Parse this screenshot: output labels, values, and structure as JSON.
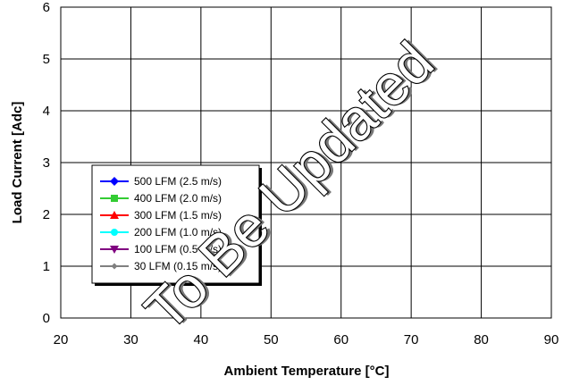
{
  "chart_data": {
    "type": "line",
    "title": "",
    "xlabel": "Ambient Temperature [°C]",
    "ylabel": "Load Current  [Adc]",
    "xlim": [
      20,
      90
    ],
    "ylim": [
      0,
      6
    ],
    "x_ticks": [
      "20",
      "30",
      "40",
      "50",
      "60",
      "70",
      "80",
      "90"
    ],
    "y_ticks": [
      "0",
      "1",
      "2",
      "3",
      "4",
      "5",
      "6"
    ],
    "grid": true,
    "legend_position": "lower-left",
    "series": [
      {
        "name": "500 LFM (2.5 m/s)",
        "color": "#0000ff",
        "marker": "diamond",
        "values": []
      },
      {
        "name": "400 LFM (2.0 m/s)",
        "color": "#33cc33",
        "marker": "square",
        "values": []
      },
      {
        "name": "300 LFM (1.5 m/s)",
        "color": "#ff0000",
        "marker": "triangle-up",
        "values": []
      },
      {
        "name": "200 LFM (1.0 m/s)",
        "color": "#00ffff",
        "marker": "circle",
        "values": []
      },
      {
        "name": "100 LFM (0.5 m/s)",
        "color": "#800080",
        "marker": "triangle-down",
        "values": []
      },
      {
        "name": "30 LFM (0.15 m/s)",
        "color": "#808080",
        "marker": "diamond-small",
        "values": []
      }
    ],
    "annotations": [
      "To Be Updated"
    ]
  }
}
